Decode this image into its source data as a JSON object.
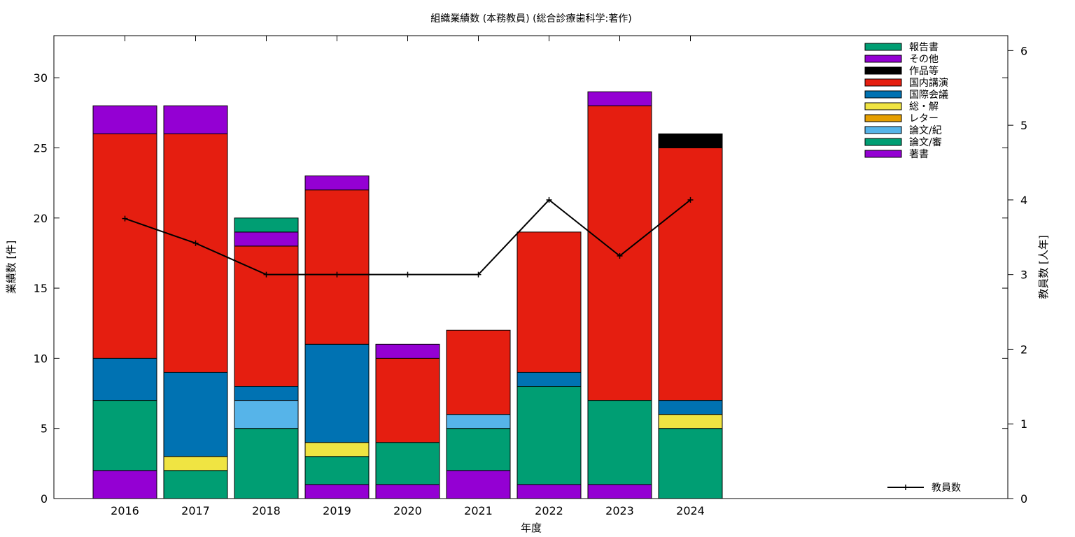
{
  "chart_data": {
    "type": "bar",
    "title": "組織業績数 (本務教員) (総合診療歯科学:著作)",
    "xlabel": "年度",
    "ylabel": "業績数 [件]",
    "y2label": "教員数 [人年]",
    "ylim": [
      0,
      33
    ],
    "y2lim": [
      0,
      6.2
    ],
    "yticks": [
      "0",
      "5",
      "10",
      "15",
      "20",
      "25",
      "30"
    ],
    "y2ticks": [
      "0",
      "1",
      "2",
      "3",
      "4",
      "5",
      "6"
    ],
    "categories": [
      "2016",
      "2017",
      "2018",
      "2019",
      "2020",
      "2021",
      "2022",
      "2023",
      "2024"
    ],
    "stacked": true,
    "series": [
      {
        "name": "著書",
        "color": "#9400d3",
        "values": [
          2,
          0,
          0,
          1,
          1,
          2,
          1,
          1,
          0
        ]
      },
      {
        "name": "論文/審",
        "color": "#009e73",
        "values": [
          5,
          2,
          5,
          2,
          3,
          3,
          7,
          6,
          5
        ]
      },
      {
        "name": "論文/紀",
        "color": "#56b4e9",
        "values": [
          0,
          0,
          2,
          0,
          0,
          1,
          0,
          0,
          0
        ]
      },
      {
        "name": "レター",
        "color": "#e69f00",
        "values": [
          0,
          0,
          0,
          0,
          0,
          0,
          0,
          0,
          0
        ]
      },
      {
        "name": "総・解",
        "color": "#f0e442",
        "values": [
          0,
          1,
          0,
          1,
          0,
          0,
          0,
          0,
          1
        ]
      },
      {
        "name": "国際会議",
        "color": "#0072b2",
        "values": [
          3,
          6,
          1,
          7,
          0,
          0,
          1,
          0,
          1
        ]
      },
      {
        "name": "国内講演",
        "color": "#e51e10",
        "values": [
          16,
          17,
          10,
          11,
          6,
          6,
          10,
          21,
          18
        ]
      },
      {
        "name": "作品等",
        "color": "#000000",
        "values": [
          0,
          0,
          0,
          0,
          0,
          0,
          0,
          0,
          1
        ]
      },
      {
        "name": "その他",
        "color": "#9400d3",
        "values": [
          2,
          2,
          1,
          1,
          1,
          0,
          0,
          1,
          0
        ]
      },
      {
        "name": "報告書",
        "color": "#009e73",
        "values": [
          0,
          0,
          1,
          0,
          0,
          0,
          0,
          0,
          0
        ]
      }
    ],
    "line_series": {
      "name": "教員数",
      "axis": "y2",
      "color": "#000000",
      "values": [
        3.75,
        3.42,
        3.0,
        3.0,
        3.0,
        3.0,
        4.0,
        3.25,
        4.0
      ]
    },
    "legend_position": "top-right"
  }
}
